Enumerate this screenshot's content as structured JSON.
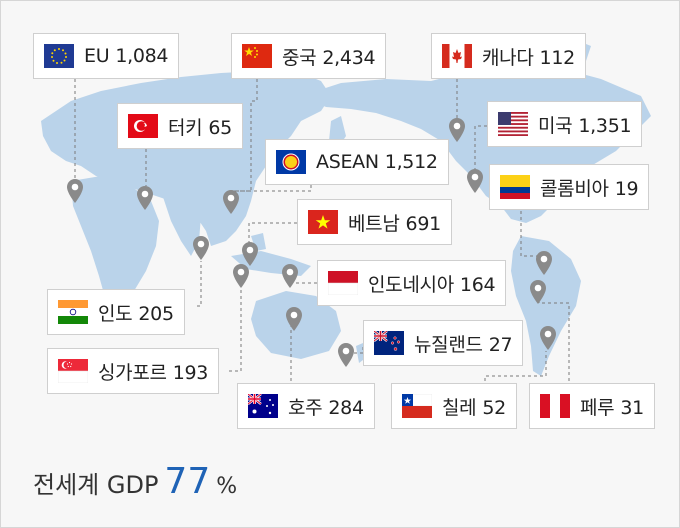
{
  "countries": [
    {
      "name": "EU",
      "value": "1,084",
      "flag": "eu-flag"
    },
    {
      "name": "중국",
      "value": "2,434",
      "flag": "china-flag"
    },
    {
      "name": "캐나다",
      "value": "112",
      "flag": "canada-flag"
    },
    {
      "name": "터키",
      "value": "65",
      "flag": "turkey-flag"
    },
    {
      "name": "미국",
      "value": "1,351",
      "flag": "usa-flag"
    },
    {
      "name": "ASEAN",
      "value": "1,512",
      "flag": "asean-flag"
    },
    {
      "name": "콜롬비아",
      "value": "19",
      "flag": "colombia-flag"
    },
    {
      "name": "베트남",
      "value": "691",
      "flag": "vietnam-flag"
    },
    {
      "name": "인도네시아",
      "value": "164",
      "flag": "indonesia-flag"
    },
    {
      "name": "인도",
      "value": "205",
      "flag": "india-flag"
    },
    {
      "name": "뉴질랜드",
      "value": "27",
      "flag": "new-zealand-flag"
    },
    {
      "name": "싱가포르",
      "value": "193",
      "flag": "singapore-flag"
    },
    {
      "name": "호주",
      "value": "284",
      "flag": "australia-flag"
    },
    {
      "name": "칠레",
      "value": "52",
      "flag": "chile-flag"
    },
    {
      "name": "페루",
      "value": "31",
      "flag": "peru-flag"
    }
  ],
  "footer": {
    "label": "전세계 GDP",
    "value": "77",
    "unit": "%"
  },
  "colors": {
    "map": "#b9d3ea",
    "pin": "#8a8a8a",
    "accent": "#1f63b6",
    "leader": "#777777"
  }
}
